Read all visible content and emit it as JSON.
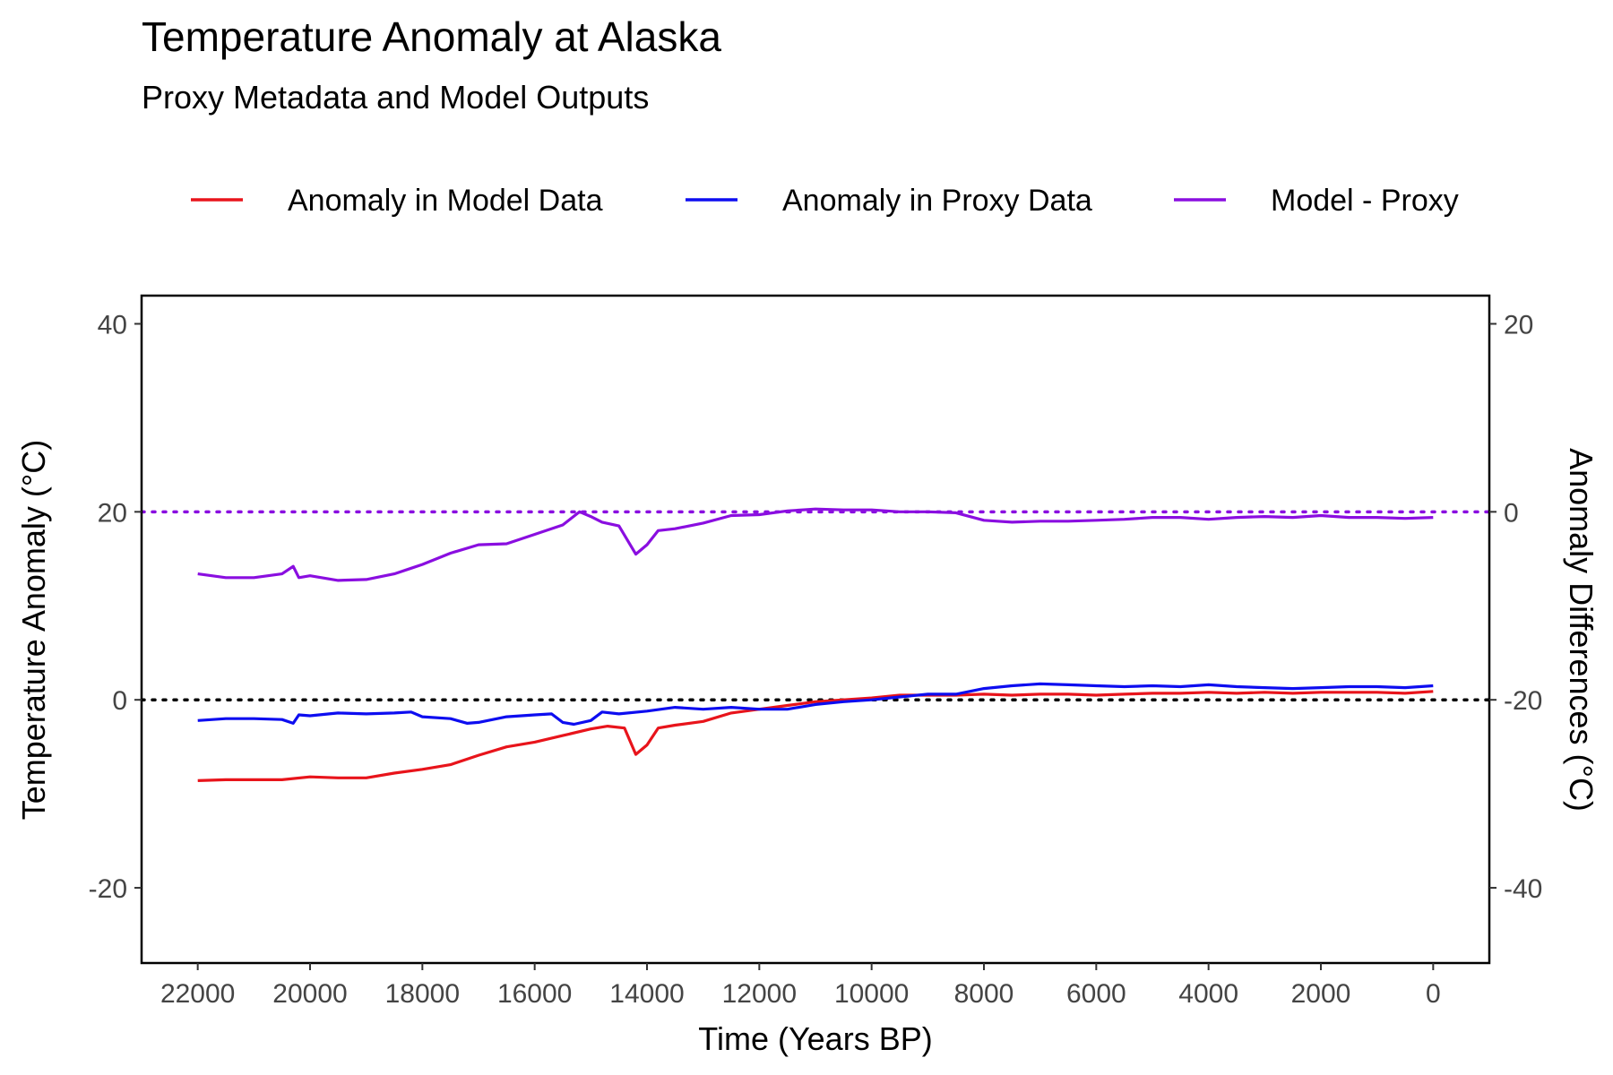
{
  "chart_data": {
    "type": "line",
    "title": "Temperature Anomaly at Alaska",
    "subtitle": "Proxy Metadata and Model Outputs",
    "xlabel": "Time (Years BP)",
    "ylabel": "Temperature Anomaly (°C)",
    "ylabel_right": "Anomaly Differences (°C)",
    "xlim": [
      23000,
      -1000
    ],
    "x_reversed": true,
    "ylim": [
      -28,
      43
    ],
    "ylim_right": [
      -48,
      23
    ],
    "right_axis_offset": -20,
    "x_ticks": [
      22000,
      20000,
      18000,
      16000,
      14000,
      12000,
      10000,
      8000,
      6000,
      4000,
      2000,
      0
    ],
    "y_ticks": [
      -20,
      0,
      20,
      40
    ],
    "y_ticks_right": [
      -40,
      -20,
      0,
      20
    ],
    "reference_lines": [
      {
        "axis": "left",
        "value": 0,
        "color": "#000000",
        "style": "dotted"
      },
      {
        "axis": "right",
        "value": 0,
        "color": "#8a0ee0",
        "style": "dotted"
      }
    ],
    "grid": false,
    "legend_position": "top",
    "series": [
      {
        "name": "Anomaly in Model Data",
        "color": "#e8141b",
        "axis": "left",
        "x": [
          22000,
          21500,
          21000,
          20500,
          20000,
          19500,
          19000,
          18500,
          18000,
          17500,
          17000,
          16500,
          16000,
          15500,
          15000,
          14700,
          14400,
          14200,
          14000,
          13800,
          13500,
          13000,
          12500,
          12000,
          11500,
          11000,
          10500,
          10000,
          9500,
          9000,
          8500,
          8000,
          7500,
          7000,
          6500,
          6000,
          5500,
          5000,
          4500,
          4000,
          3500,
          3000,
          2500,
          2000,
          1500,
          1000,
          500,
          0
        ],
        "y": [
          -8.6,
          -8.5,
          -8.5,
          -8.5,
          -8.2,
          -8.3,
          -8.3,
          -7.8,
          -7.4,
          -6.9,
          -5.9,
          -5.0,
          -4.5,
          -3.8,
          -3.1,
          -2.8,
          -3.0,
          -5.8,
          -4.8,
          -3.0,
          -2.7,
          -2.3,
          -1.4,
          -1.0,
          -0.6,
          -0.2,
          0.0,
          0.2,
          0.5,
          0.5,
          0.5,
          0.6,
          0.5,
          0.6,
          0.6,
          0.5,
          0.6,
          0.7,
          0.7,
          0.8,
          0.7,
          0.8,
          0.7,
          0.8,
          0.8,
          0.8,
          0.7,
          0.9
        ]
      },
      {
        "name": "Anomaly in Proxy Data",
        "color": "#0d0df0",
        "axis": "left",
        "x": [
          22000,
          21500,
          21000,
          20500,
          20300,
          20200,
          20000,
          19500,
          19000,
          18500,
          18200,
          18000,
          17500,
          17200,
          17000,
          16500,
          16000,
          15700,
          15500,
          15300,
          15000,
          14800,
          14500,
          14000,
          13500,
          13000,
          12500,
          12000,
          11500,
          11000,
          10500,
          10000,
          9500,
          9000,
          8500,
          8000,
          7500,
          7000,
          6500,
          6000,
          5500,
          5000,
          4500,
          4000,
          3500,
          3000,
          2500,
          2000,
          1500,
          1000,
          500,
          0
        ],
        "y": [
          -2.2,
          -2.0,
          -2.0,
          -2.1,
          -2.5,
          -1.6,
          -1.7,
          -1.4,
          -1.5,
          -1.4,
          -1.3,
          -1.8,
          -2.0,
          -2.5,
          -2.4,
          -1.8,
          -1.6,
          -1.5,
          -2.4,
          -2.6,
          -2.2,
          -1.3,
          -1.5,
          -1.2,
          -0.8,
          -1.0,
          -0.8,
          -1.0,
          -1.0,
          -0.5,
          -0.2,
          0.0,
          0.3,
          0.6,
          0.6,
          1.2,
          1.5,
          1.7,
          1.6,
          1.5,
          1.4,
          1.5,
          1.4,
          1.6,
          1.4,
          1.3,
          1.2,
          1.3,
          1.4,
          1.4,
          1.3,
          1.5
        ]
      },
      {
        "name": "Model - Proxy",
        "color": "#8a0ee0",
        "axis": "right",
        "x": [
          22000,
          21500,
          21000,
          20500,
          20300,
          20200,
          20000,
          19500,
          19000,
          18500,
          18200,
          18000,
          17500,
          17000,
          16500,
          16000,
          15500,
          15200,
          15000,
          14800,
          14500,
          14200,
          14000,
          13800,
          13500,
          13000,
          12500,
          12000,
          11500,
          11000,
          10500,
          10000,
          9500,
          9000,
          8500,
          8000,
          7500,
          7000,
          6500,
          6000,
          5500,
          5000,
          4500,
          4000,
          3500,
          3000,
          2500,
          2000,
          1500,
          1000,
          500,
          0
        ],
        "y": [
          -6.6,
          -7.0,
          -7.0,
          -6.6,
          -5.8,
          -7.0,
          -6.8,
          -7.3,
          -7.2,
          -6.6,
          -6.0,
          -5.6,
          -4.4,
          -3.5,
          -3.4,
          -2.4,
          -1.4,
          0.0,
          -0.5,
          -1.1,
          -1.5,
          -4.5,
          -3.5,
          -2.0,
          -1.8,
          -1.2,
          -0.4,
          -0.3,
          0.1,
          0.3,
          0.2,
          0.2,
          0.0,
          0.0,
          -0.1,
          -0.9,
          -1.1,
          -1.0,
          -1.0,
          -0.9,
          -0.8,
          -0.6,
          -0.6,
          -0.8,
          -0.6,
          -0.5,
          -0.6,
          -0.4,
          -0.6,
          -0.6,
          -0.7,
          -0.6
        ]
      }
    ]
  }
}
